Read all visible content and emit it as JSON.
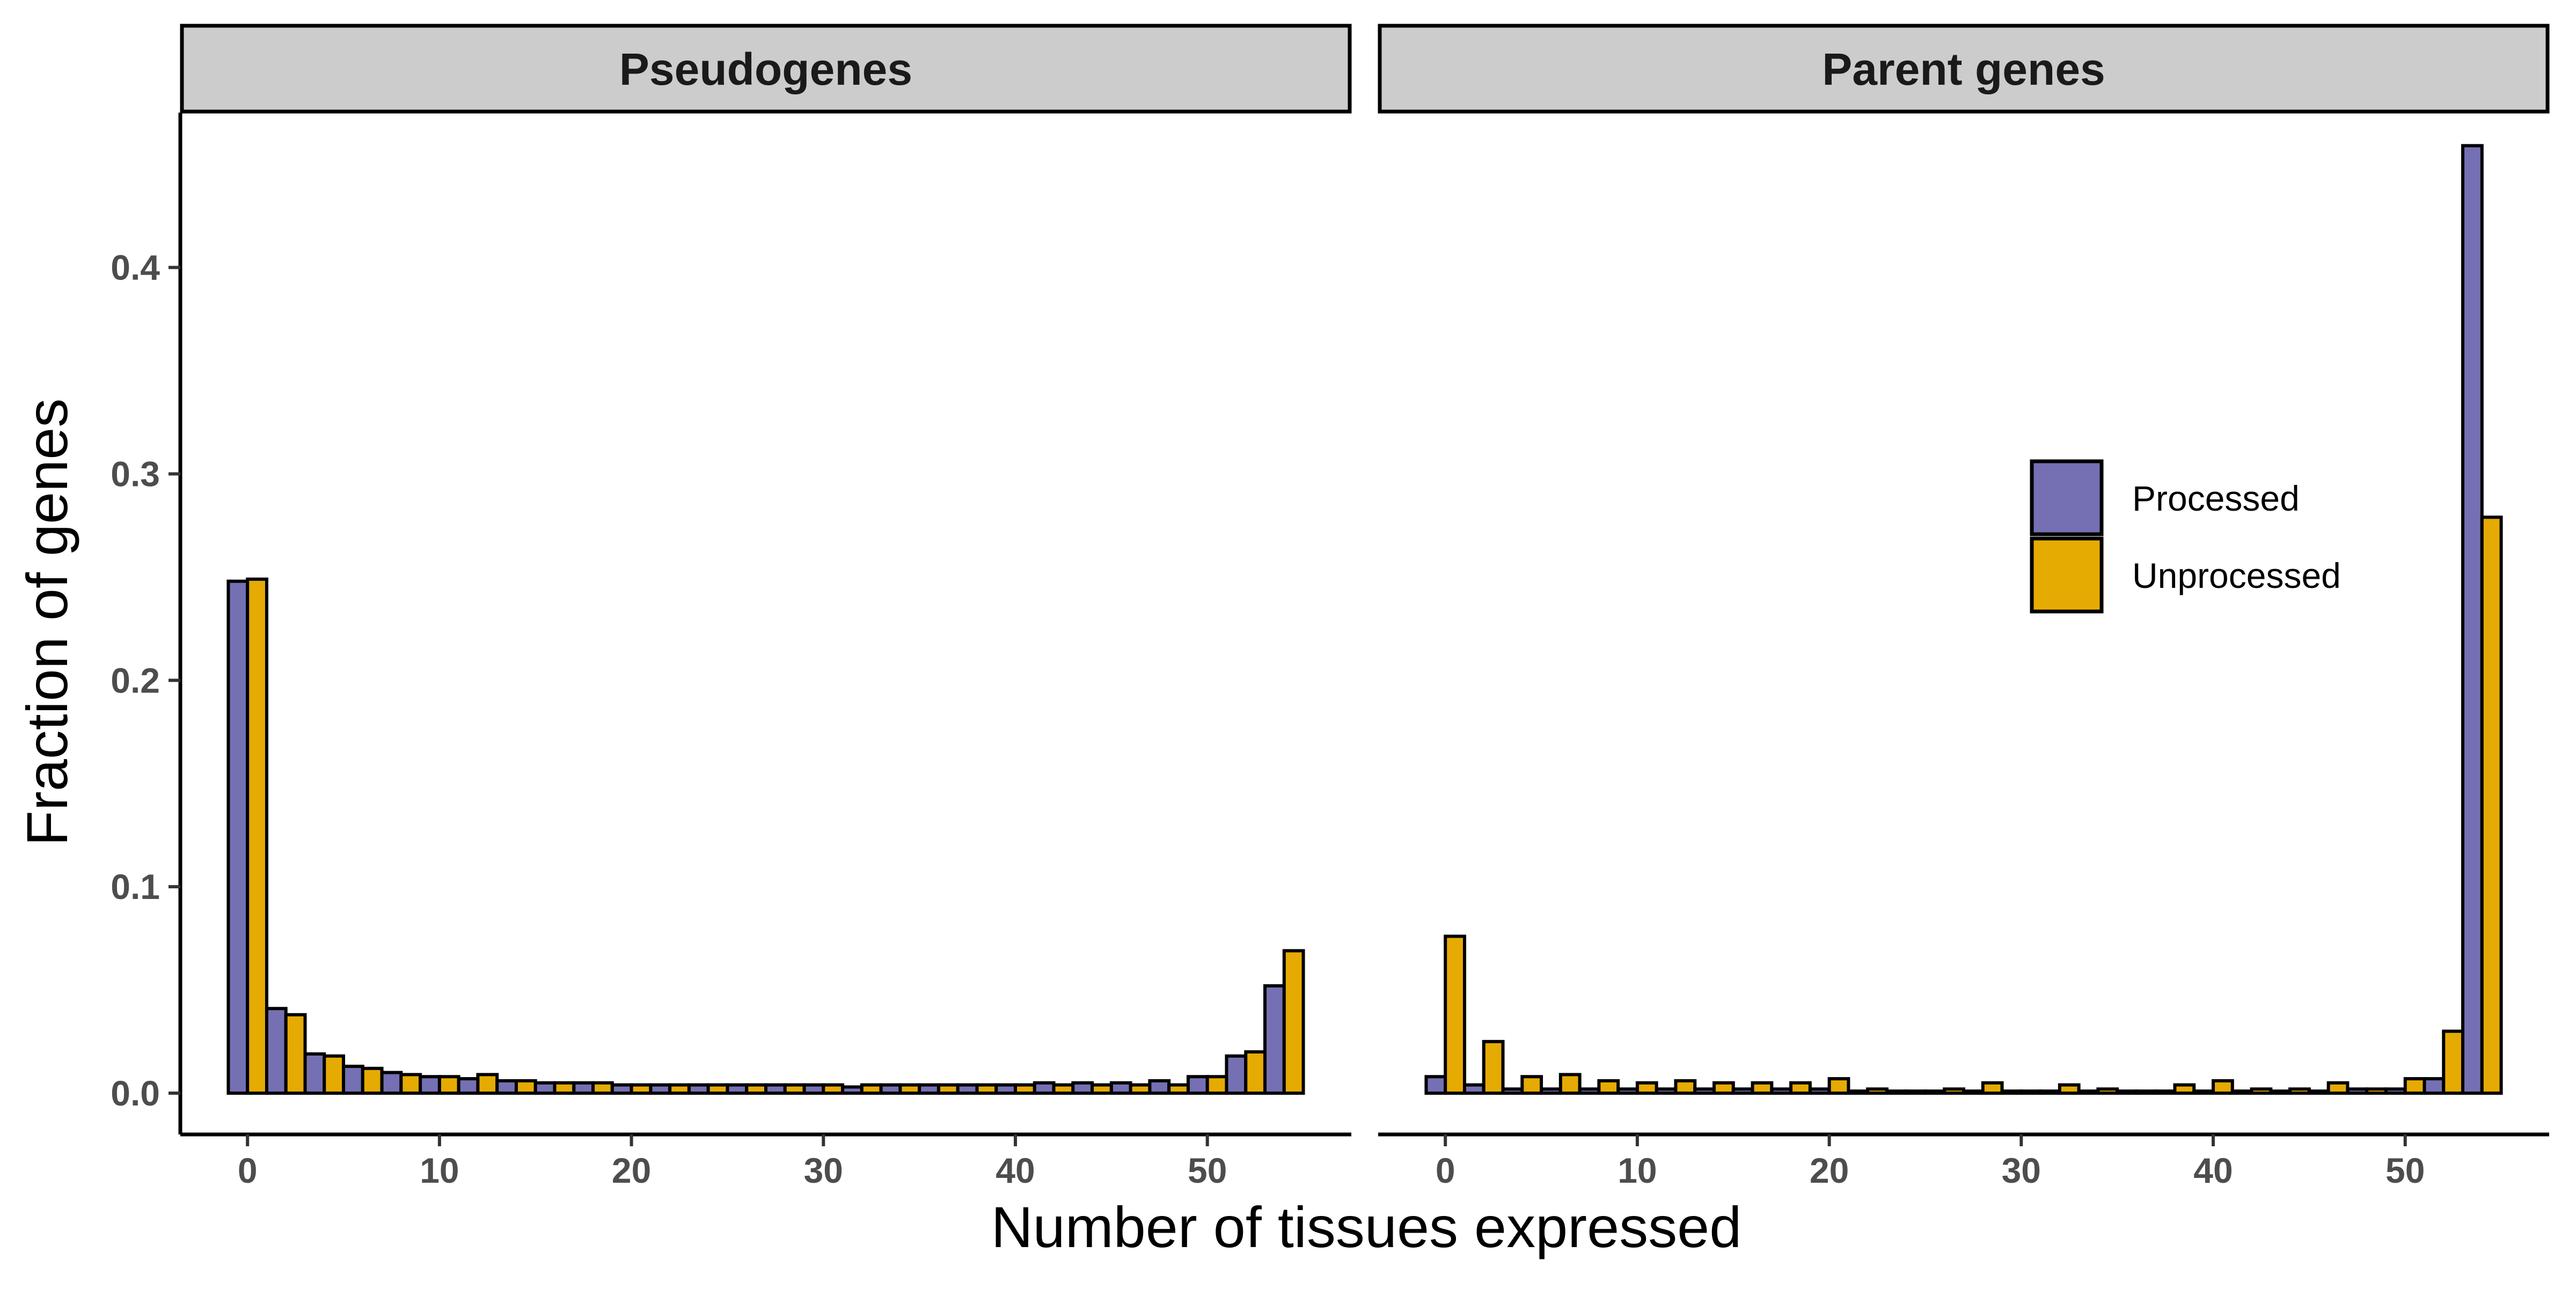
{
  "colors": {
    "processed": "#7570b3",
    "unprocessed": "#e6ab02",
    "strip_fill": "#cccccc",
    "outline": "#000000",
    "tick_label": "#4d4d4d"
  },
  "chart_data": {
    "type": "bar",
    "xlabel": "Number of tissues expressed",
    "ylabel": "Fraction of genes",
    "xlim": [
      -3.5,
      57.5
    ],
    "ylim": [
      -0.02,
      0.475
    ],
    "x_ticks": [
      0,
      10,
      20,
      30,
      40,
      50
    ],
    "y_ticks": [
      0.0,
      0.1,
      0.2,
      0.3,
      0.4
    ],
    "y_tick_labels": [
      "0.0",
      "0.1",
      "0.2",
      "0.3",
      "0.4"
    ],
    "legend": {
      "position": "inside-right",
      "entries": [
        "Processed",
        "Unprocessed"
      ]
    },
    "bin_width": 2,
    "bin_centers": [
      0,
      2,
      4,
      6,
      8,
      10,
      12,
      14,
      16,
      18,
      20,
      22,
      24,
      26,
      28,
      30,
      32,
      34,
      36,
      38,
      40,
      42,
      44,
      46,
      48,
      50,
      52,
      54
    ],
    "panels": [
      {
        "title": "Pseudogenes",
        "series": [
          {
            "name": "Processed",
            "values": [
              0.248,
              0.041,
              0.019,
              0.013,
              0.01,
              0.008,
              0.007,
              0.006,
              0.005,
              0.005,
              0.004,
              0.004,
              0.004,
              0.004,
              0.004,
              0.004,
              0.003,
              0.004,
              0.004,
              0.004,
              0.004,
              0.005,
              0.005,
              0.005,
              0.006,
              0.008,
              0.018,
              0.052
            ]
          },
          {
            "name": "Unprocessed",
            "values": [
              0.249,
              0.038,
              0.018,
              0.012,
              0.009,
              0.008,
              0.009,
              0.006,
              0.005,
              0.005,
              0.004,
              0.004,
              0.004,
              0.004,
              0.004,
              0.004,
              0.004,
              0.004,
              0.004,
              0.004,
              0.004,
              0.004,
              0.004,
              0.004,
              0.004,
              0.008,
              0.02,
              0.069
            ]
          }
        ]
      },
      {
        "title": "Parent genes",
        "series": [
          {
            "name": "Processed",
            "values": [
              0.008,
              0.004,
              0.002,
              0.002,
              0.002,
              0.002,
              0.002,
              0.002,
              0.002,
              0.002,
              0.002,
              0.001,
              0.001,
              0.001,
              0.001,
              0.001,
              0.001,
              0.001,
              0.001,
              0.001,
              0.001,
              0.001,
              0.001,
              0.001,
              0.002,
              0.002,
              0.007,
              0.459
            ]
          },
          {
            "name": "Unprocessed",
            "values": [
              0.076,
              0.025,
              0.008,
              0.009,
              0.006,
              0.005,
              0.006,
              0.005,
              0.005,
              0.005,
              0.007,
              0.002,
              0.001,
              0.002,
              0.005,
              0.001,
              0.004,
              0.002,
              0.001,
              0.004,
              0.006,
              0.002,
              0.002,
              0.005,
              0.002,
              0.007,
              0.03,
              0.279
            ]
          }
        ]
      }
    ]
  }
}
